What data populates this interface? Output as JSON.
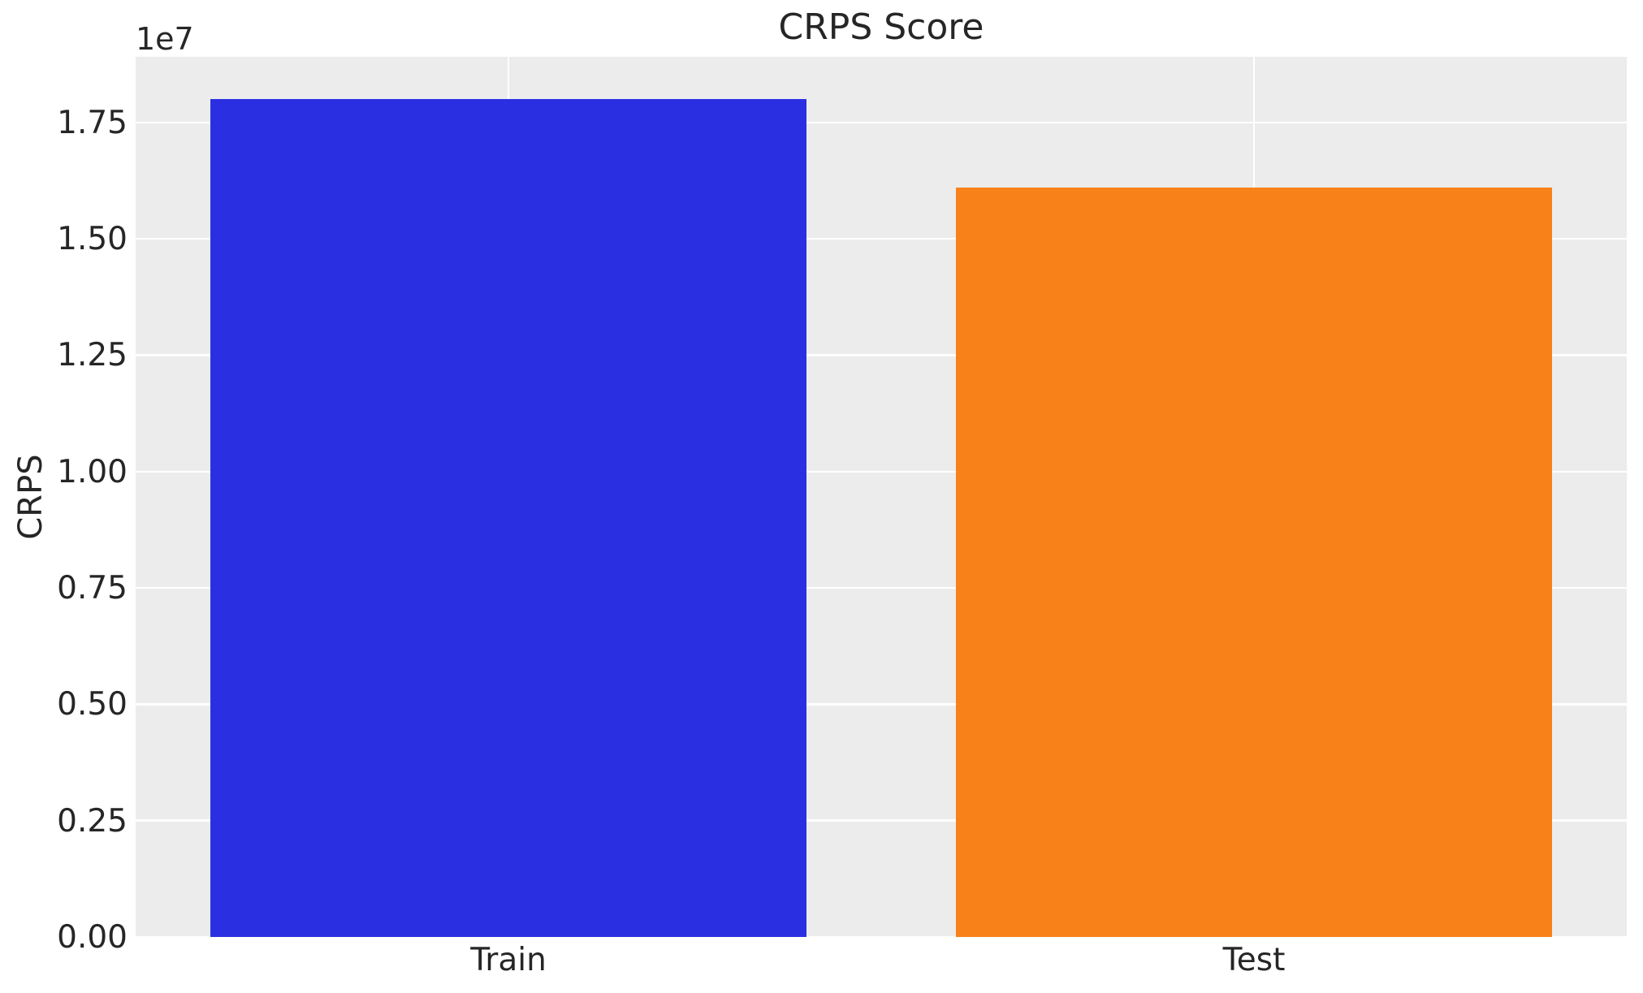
{
  "chart_data": {
    "type": "bar",
    "title": "CRPS Score",
    "xlabel": "",
    "ylabel": "CRPS",
    "y_offset_label": "1e7",
    "categories": [
      "Train",
      "Test"
    ],
    "values": [
      18000000,
      16100000
    ],
    "bar_colors": [
      "#2b2fe2",
      "#f8811a"
    ],
    "ylim": [
      0,
      18910000
    ],
    "yticks": [
      0,
      2500000,
      5000000,
      7500000,
      10000000,
      12500000,
      15000000,
      17500000
    ],
    "ytick_labels": [
      "0.00",
      "0.25",
      "0.50",
      "0.75",
      "1.00",
      "1.25",
      "1.50",
      "1.75"
    ],
    "bar_width_fraction": 0.8,
    "grid": true,
    "legend": false,
    "plot_background": "#ececec",
    "gridline_color": "#ffffff",
    "figure_background": "#ffffff",
    "text_color": "#262626"
  }
}
